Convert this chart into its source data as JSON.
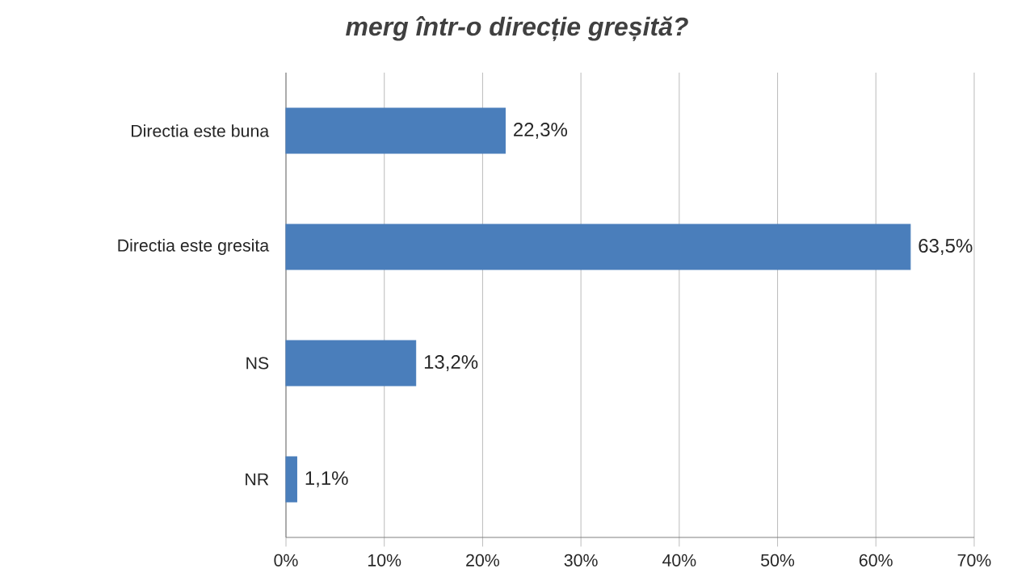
{
  "chart_data": {
    "type": "bar",
    "orientation": "horizontal",
    "title": "merg într-o direcție greșită?",
    "categories": [
      "Directia este buna",
      "Directia este gresita",
      "NS",
      "NR"
    ],
    "values": [
      22.3,
      63.5,
      13.2,
      1.1
    ],
    "value_labels": [
      "22,3%",
      "63,5%",
      "13,2%",
      "1,1%"
    ],
    "color": "#4a7ebb",
    "xlim": [
      0,
      70
    ],
    "xticks": [
      {
        "value": 0,
        "label": "0%"
      },
      {
        "value": 10,
        "label": "10%"
      },
      {
        "value": 20,
        "label": "20%"
      },
      {
        "value": 30,
        "label": "30%"
      },
      {
        "value": 40,
        "label": "40%"
      },
      {
        "value": 50,
        "label": "50%"
      },
      {
        "value": 60,
        "label": "60%"
      },
      {
        "value": 70,
        "label": "70%"
      }
    ],
    "grid": "x"
  }
}
